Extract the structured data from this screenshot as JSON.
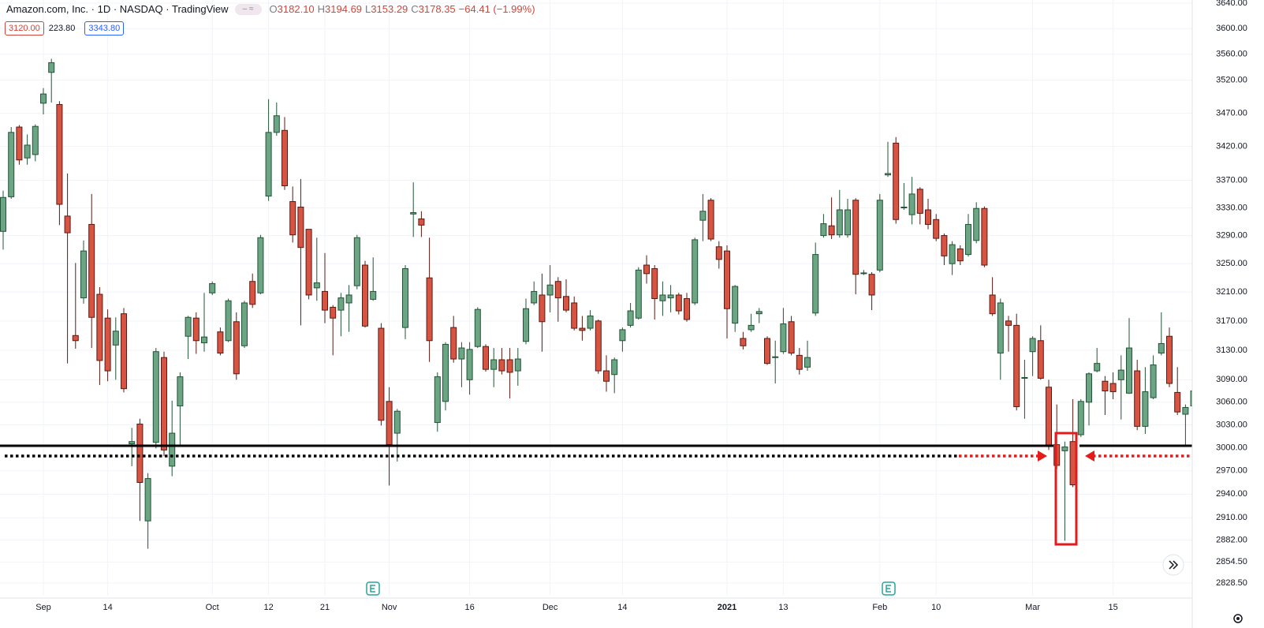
{
  "chart_data": {
    "type": "candlestick",
    "title": "Amazon.com, Inc. · 1D · NASDAQ · TradingView",
    "ohlc_legend": [
      {
        "key": "O",
        "value": "3182.10"
      },
      {
        "key": "H",
        "value": "3194.69"
      },
      {
        "key": "L",
        "value": "3153.29"
      },
      {
        "key": "C",
        "value": "3178.35"
      }
    ],
    "change": "−64.41 (−1.99%)",
    "badges": [
      "3120.00",
      "223.80",
      "3343.80"
    ],
    "up_color": "#6ba583",
    "up_border": "#225437",
    "down_color": "#d75442",
    "down_border": "#5b1a13",
    "log_scale": true,
    "grid": true,
    "ylim": [
      2813,
      3645
    ],
    "yticks": [
      {
        "value": 3640,
        "label": "3640.00"
      },
      {
        "value": 3600,
        "label": "3600.00"
      },
      {
        "value": 3560,
        "label": "3560.00"
      },
      {
        "value": 3520,
        "label": "3520.00"
      },
      {
        "value": 3470,
        "label": "3470.00"
      },
      {
        "value": 3420,
        "label": "3420.00"
      },
      {
        "value": 3370,
        "label": "3370.00"
      },
      {
        "value": 3330,
        "label": "3330.00"
      },
      {
        "value": 3290,
        "label": "3290.00"
      },
      {
        "value": 3250,
        "label": "3250.00"
      },
      {
        "value": 3210,
        "label": "3210.00"
      },
      {
        "value": 3170,
        "label": "3170.00"
      },
      {
        "value": 3130,
        "label": "3130.00"
      },
      {
        "value": 3090,
        "label": "3090.00"
      },
      {
        "value": 3060,
        "label": "3060.00"
      },
      {
        "value": 3030,
        "label": "3030.00"
      },
      {
        "value": 3000,
        "label": "3000.00"
      },
      {
        "value": 2970,
        "label": "2970.00"
      },
      {
        "value": 2940,
        "label": "2940.00"
      },
      {
        "value": 2910,
        "label": "2910.00"
      },
      {
        "value": 2882,
        "label": "2882.00"
      },
      {
        "value": 2854.5,
        "label": "2854.50"
      },
      {
        "value": 2828.5,
        "label": "2828.50"
      }
    ],
    "categories": [
      null,
      null,
      null,
      null,
      null,
      "Sep",
      null,
      null,
      null,
      null,
      null,
      null,
      null,
      "14",
      null,
      null,
      null,
      null,
      null,
      null,
      null,
      null,
      null,
      null,
      null,
      null,
      "Oct",
      null,
      null,
      null,
      null,
      null,
      null,
      "12",
      null,
      null,
      null,
      null,
      null,
      null,
      "21",
      null,
      null,
      null,
      null,
      null,
      null,
      null,
      "Nov",
      null,
      null,
      null,
      null,
      null,
      null,
      null,
      null,
      null,
      "16",
      null,
      null,
      null,
      null,
      null,
      null,
      null,
      null,
      null,
      "Dec",
      null,
      null,
      null,
      null,
      null,
      null,
      null,
      null,
      "14",
      null,
      null,
      null,
      null,
      null,
      null,
      null,
      null,
      null,
      null,
      null,
      null,
      "2021",
      null,
      null,
      null,
      null,
      null,
      null,
      "13",
      null,
      null,
      null,
      null,
      null,
      null,
      null,
      null,
      null,
      null,
      null,
      "Feb",
      null,
      null,
      null,
      null,
      null,
      null,
      "10",
      null,
      null,
      null,
      null,
      null,
      null,
      null,
      null,
      null,
      null,
      null,
      "Mar",
      null,
      null,
      null,
      null,
      null,
      null,
      null,
      null,
      null,
      "15",
      null,
      null,
      null,
      null,
      null,
      null,
      null,
      null,
      null,
      null
    ],
    "open": [
      3296,
      3346,
      3449,
      3403,
      3408,
      3485,
      3532,
      3483,
      3318,
      3150,
      3202,
      3306,
      3207,
      3174,
      3137,
      3180,
      3005,
      3031,
      2906,
      3007,
      3120,
      2976,
      3055,
      3149,
      3174,
      3140,
      3209,
      3155,
      3143,
      3169,
      3136,
      3225,
      3209,
      3347,
      3441,
      3444,
      3339,
      3331,
      3299,
      3216,
      3211,
      3189,
      3185,
      3195,
      3219,
      3248,
      3200,
      3160,
      3061,
      3019,
      3161,
      3321,
      3314,
      3230,
      3033,
      3061,
      3161,
      3118,
      3090,
      3135,
      3135,
      3104,
      3117,
      3117,
      3102,
      3142,
      3195,
      3206,
      3206,
      3225,
      3204,
      3195,
      3160,
      3160,
      3170,
      3102,
      3097,
      3143,
      3164,
      3174,
      3248,
      3243,
      3198,
      3202,
      3206,
      3201,
      3195,
      3312,
      3341,
      3274,
      3268,
      3167,
      3146,
      3158,
      3180,
      3146,
      3120,
      3128,
      3169,
      3123,
      3107,
      3181,
      3290,
      3304,
      3291,
      3291,
      3341,
      3236,
      3235,
      3241,
      3378,
      3425,
      3330,
      3320,
      3357,
      3327,
      3313,
      3290,
      3250,
      3271,
      3263,
      3283,
      3329,
      3206,
      3126,
      3170,
      3164,
      3092,
      3128,
      3143,
      3080,
      3004,
      2996,
      3008,
      3017,
      3060,
      3102,
      3088,
      3085,
      3090,
      3072,
      3102,
      3028,
      3066,
      3126,
      3149,
      3073,
      3044,
      3055
    ],
    "high": [
      3355,
      3449,
      3452,
      3438,
      3453,
      3508,
      3553,
      3488,
      3380,
      3251,
      3283,
      3350,
      3217,
      3186,
      3175,
      3188,
      3026,
      3038,
      2967,
      3133,
      3128,
      3062,
      3100,
      3177,
      3182,
      3209,
      3225,
      3161,
      3201,
      3182,
      3198,
      3236,
      3291,
      3491,
      3486,
      3464,
      3361,
      3372,
      3299,
      3287,
      3265,
      3192,
      3209,
      3220,
      3291,
      3254,
      3259,
      3167,
      3080,
      3051,
      3248,
      3367,
      3325,
      3287,
      3100,
      3141,
      3177,
      3141,
      3141,
      3189,
      3138,
      3133,
      3133,
      3133,
      3133,
      3201,
      3225,
      3236,
      3248,
      3231,
      3228,
      3204,
      3177,
      3185,
      3172,
      3123,
      3120,
      3161,
      3195,
      3245,
      3262,
      3248,
      3225,
      3220,
      3209,
      3209,
      3287,
      3350,
      3344,
      3282,
      3276,
      3220,
      3155,
      3180,
      3188,
      3149,
      3143,
      3188,
      3177,
      3133,
      3143,
      3280,
      3321,
      3345,
      3356,
      3343,
      3344,
      3241,
      3238,
      3350,
      3427,
      3434,
      3366,
      3375,
      3360,
      3343,
      3321,
      3293,
      3282,
      3276,
      3321,
      3338,
      3332,
      3231,
      3201,
      3177,
      3180,
      3117,
      3149,
      3164,
      3090,
      3057,
      3008,
      3064,
      3064,
      3100,
      3133,
      3095,
      3100,
      3123,
      3174,
      3117,
      3107,
      3123,
      3182,
      3161,
      3107,
      3057,
      3080
    ],
    "low": [
      3270,
      3343,
      3393,
      3393,
      3398,
      3468,
      3486,
      3305,
      3112,
      3132,
      3194,
      3133,
      3083,
      3088,
      3090,
      3073,
      2976,
      2906,
      2871,
      2999,
      2989,
      2963,
      3002,
      3118,
      3125,
      3128,
      3206,
      3123,
      3141,
      3090,
      3133,
      3188,
      3207,
      3340,
      3436,
      3356,
      3280,
      3164,
      3200,
      3198,
      3167,
      3123,
      3149,
      3155,
      3214,
      3161,
      3198,
      3029,
      2951,
      2982,
      3145,
      3288,
      3288,
      3114,
      3021,
      3049,
      3113,
      3080,
      3070,
      3133,
      3101,
      3080,
      3097,
      3065,
      3082,
      3138,
      3192,
      3128,
      3182,
      3169,
      3182,
      3157,
      3143,
      3157,
      3098,
      3074,
      3072,
      3128,
      3161,
      3172,
      3222,
      3172,
      3177,
      3182,
      3179,
      3169,
      3192,
      3282,
      3282,
      3243,
      3146,
      3155,
      3131,
      3155,
      3167,
      3110,
      3085,
      3125,
      3123,
      3097,
      3102,
      3177,
      3287,
      3285,
      3287,
      3287,
      3207,
      3234,
      3185,
      3238,
      3375,
      3307,
      3327,
      3306,
      3306,
      3299,
      3282,
      3248,
      3234,
      3248,
      3260,
      3279,
      3245,
      3177,
      3090,
      3128,
      3049,
      3038,
      3095,
      3090,
      2997,
      2972,
      2881,
      2949,
      3014,
      3029,
      3100,
      3043,
      3064,
      3037,
      3071,
      3023,
      3018,
      3064,
      3123,
      3080,
      3043,
      3002,
      3052
    ],
    "close": [
      3345,
      3441,
      3400,
      3422,
      3450,
      3499,
      3547,
      3335,
      3294,
      3143,
      3268,
      3175,
      3116,
      3102,
      3156,
      3078,
      3008,
      2955,
      2960,
      3128,
      2997,
      3019,
      3094,
      3175,
      3143,
      3148,
      3222,
      3126,
      3198,
      3098,
      3195,
      3193,
      3287,
      3441,
      3466,
      3362,
      3291,
      3273,
      3206,
      3223,
      3185,
      3174,
      3202,
      3206,
      3287,
      3163,
      3211,
      3036,
      3004,
      3048,
      3243,
      3323,
      3305,
      3143,
      3094,
      3138,
      3118,
      3133,
      3131,
      3186,
      3104,
      3117,
      3102,
      3100,
      3118,
      3187,
      3211,
      3169,
      3220,
      3202,
      3185,
      3160,
      3157,
      3177,
      3102,
      3088,
      3117,
      3158,
      3184,
      3241,
      3236,
      3201,
      3206,
      3206,
      3184,
      3172,
      3284,
      3325,
      3285,
      3256,
      3187,
      3218,
      3136,
      3164,
      3183,
      3112,
      3121,
      3166,
      3126,
      3104,
      3120,
      3263,
      3307,
      3291,
      3327,
      3327,
      3235,
      3237,
      3206,
      3341,
      3380,
      3313,
      3331,
      3350,
      3322,
      3306,
      3286,
      3261,
      3277,
      3254,
      3306,
      3329,
      3248,
      3180,
      3195,
      3164,
      3054,
      3093,
      3146,
      3092,
      3002,
      2977,
      3001,
      2952,
      3061,
      3098,
      3112,
      3075,
      3074,
      3103,
      3133,
      3028,
      3074,
      3110,
      3139,
      3085,
      3047,
      3053,
      3075
    ]
  }
}
